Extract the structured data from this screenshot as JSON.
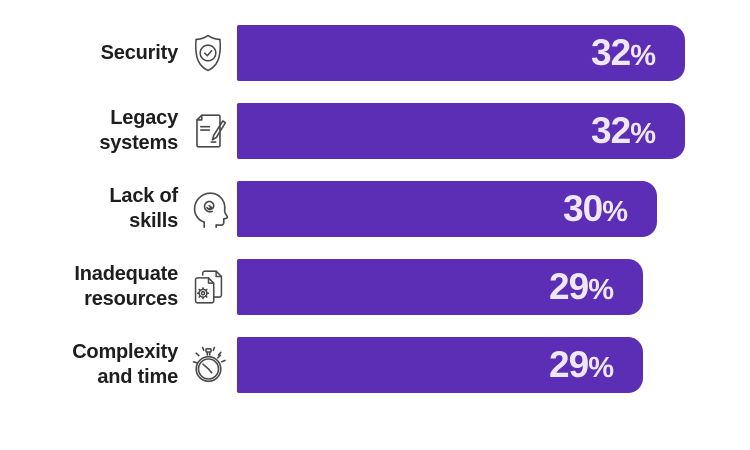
{
  "chart_data": {
    "type": "bar",
    "orientation": "horizontal",
    "categories": [
      "Security",
      "Legacy systems",
      "Lack of skills",
      "Inadequate resources",
      "Complexity and time"
    ],
    "values": [
      32,
      32,
      30,
      29,
      29
    ],
    "value_labels": [
      "32%",
      "32%",
      "30%",
      "29%",
      "29%"
    ],
    "xlim": [
      0,
      32
    ],
    "grid": false,
    "legend": false,
    "bar_color": "#5C2DB5",
    "value_label_color": "#EDE7F8",
    "category_label_color": "#1E1E1E",
    "icon_color": "#4A4A4A",
    "background_color": "#FFFFFF"
  },
  "rows": [
    {
      "label": "Security",
      "label_lines": [
        "Security"
      ],
      "percent": 32,
      "value_num": "32",
      "value_suffix": "%",
      "icon": "shield-check-icon"
    },
    {
      "label": "Legacy systems",
      "label_lines": [
        "Legacy",
        "systems"
      ],
      "percent": 32,
      "value_num": "32",
      "value_suffix": "%",
      "icon": "document-edit-icon"
    },
    {
      "label": "Lack of skills",
      "label_lines": [
        "Lack of",
        "skills"
      ],
      "percent": 30,
      "value_num": "30",
      "value_suffix": "%",
      "icon": "head-profile-icon"
    },
    {
      "label": "Inadequate resources",
      "label_lines": [
        "Inadequate",
        "resources"
      ],
      "percent": 29,
      "value_num": "29",
      "value_suffix": "%",
      "icon": "documents-gear-icon"
    },
    {
      "label": "Complexity and time",
      "label_lines": [
        "Complexity",
        "and time"
      ],
      "percent": 29,
      "value_num": "29",
      "value_suffix": "%",
      "icon": "stopwatch-icon"
    }
  ]
}
